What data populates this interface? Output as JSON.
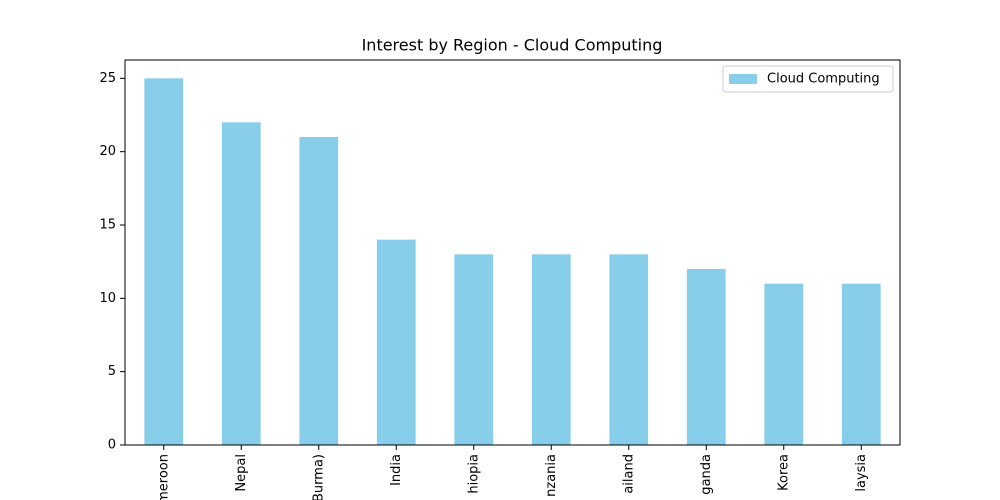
{
  "chart_data": {
    "type": "bar",
    "title": "Interest by Region - Cloud Computing",
    "categories": [
      "meroon",
      "Nepal",
      "Burma)",
      "India",
      "hiopia",
      "nzania",
      "ailand",
      "ganda",
      "Korea",
      "laysia"
    ],
    "series": [
      {
        "name": "Cloud Computing",
        "color": "#87ceeb",
        "values": [
          25,
          22,
          21,
          14,
          13,
          13,
          13,
          12,
          11,
          11
        ]
      }
    ],
    "ylim": [
      0,
      26.25
    ],
    "yticks": [
      0,
      5,
      10,
      15,
      20,
      25
    ],
    "legend": "upper right"
  }
}
